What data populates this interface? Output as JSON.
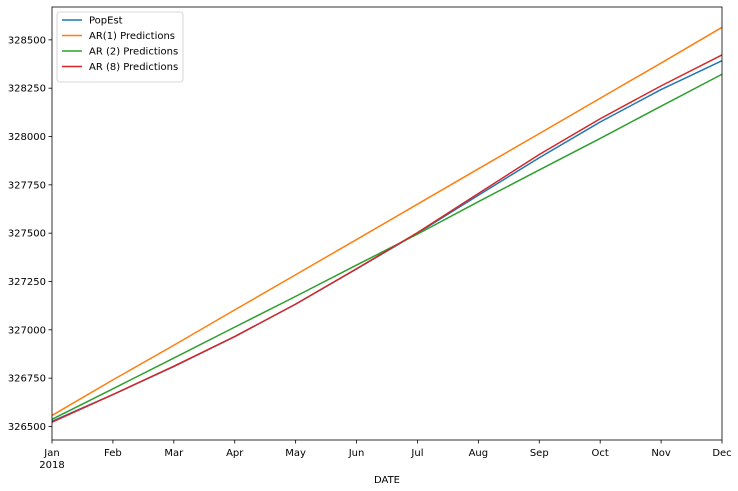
{
  "chart_data": {
    "type": "line",
    "title": "",
    "xlabel": "DATE",
    "ylabel": "",
    "x": [
      "2018-01",
      "2018-02",
      "2018-03",
      "2018-04",
      "2018-05",
      "2018-06",
      "2018-07",
      "2018-08",
      "2018-09",
      "2018-10",
      "2018-11",
      "2018-12"
    ],
    "x_tick_labels": [
      "Jan",
      "Feb",
      "Mar",
      "Apr",
      "May",
      "Jun",
      "Jul",
      "Aug",
      "Sep",
      "Oct",
      "Nov",
      "Dec"
    ],
    "x_year_label": "2018",
    "y_ticks": [
      326500,
      326750,
      327000,
      327250,
      327500,
      327750,
      328000,
      328250,
      328500
    ],
    "ylim": [
      326430,
      328670
    ],
    "grid": false,
    "legend_position": "top-left",
    "series": [
      {
        "name": "PopEst",
        "color": "#1f77b4",
        "values": [
          326527,
          326665,
          326810,
          326965,
          327133,
          327315,
          327500,
          327696,
          327890,
          328075,
          328243,
          328392
        ]
      },
      {
        "name": "AR(1) Predictions",
        "color": "#ff7f0e",
        "values": [
          326557,
          326741,
          326920,
          327103,
          327285,
          327467,
          327650,
          327833,
          328015,
          328198,
          328380,
          328565
        ]
      },
      {
        "name": "AR (2) Predictions",
        "color": "#2ca02c",
        "values": [
          326537,
          326695,
          326854,
          327014,
          327173,
          327335,
          327495,
          327663,
          327827,
          327990,
          328157,
          328322
        ]
      },
      {
        "name": "AR (8) Predictions",
        "color": "#d62728",
        "values": [
          326522,
          326665,
          326812,
          326965,
          327133,
          327316,
          327503,
          327705,
          327907,
          328092,
          328262,
          328422
        ]
      }
    ]
  }
}
